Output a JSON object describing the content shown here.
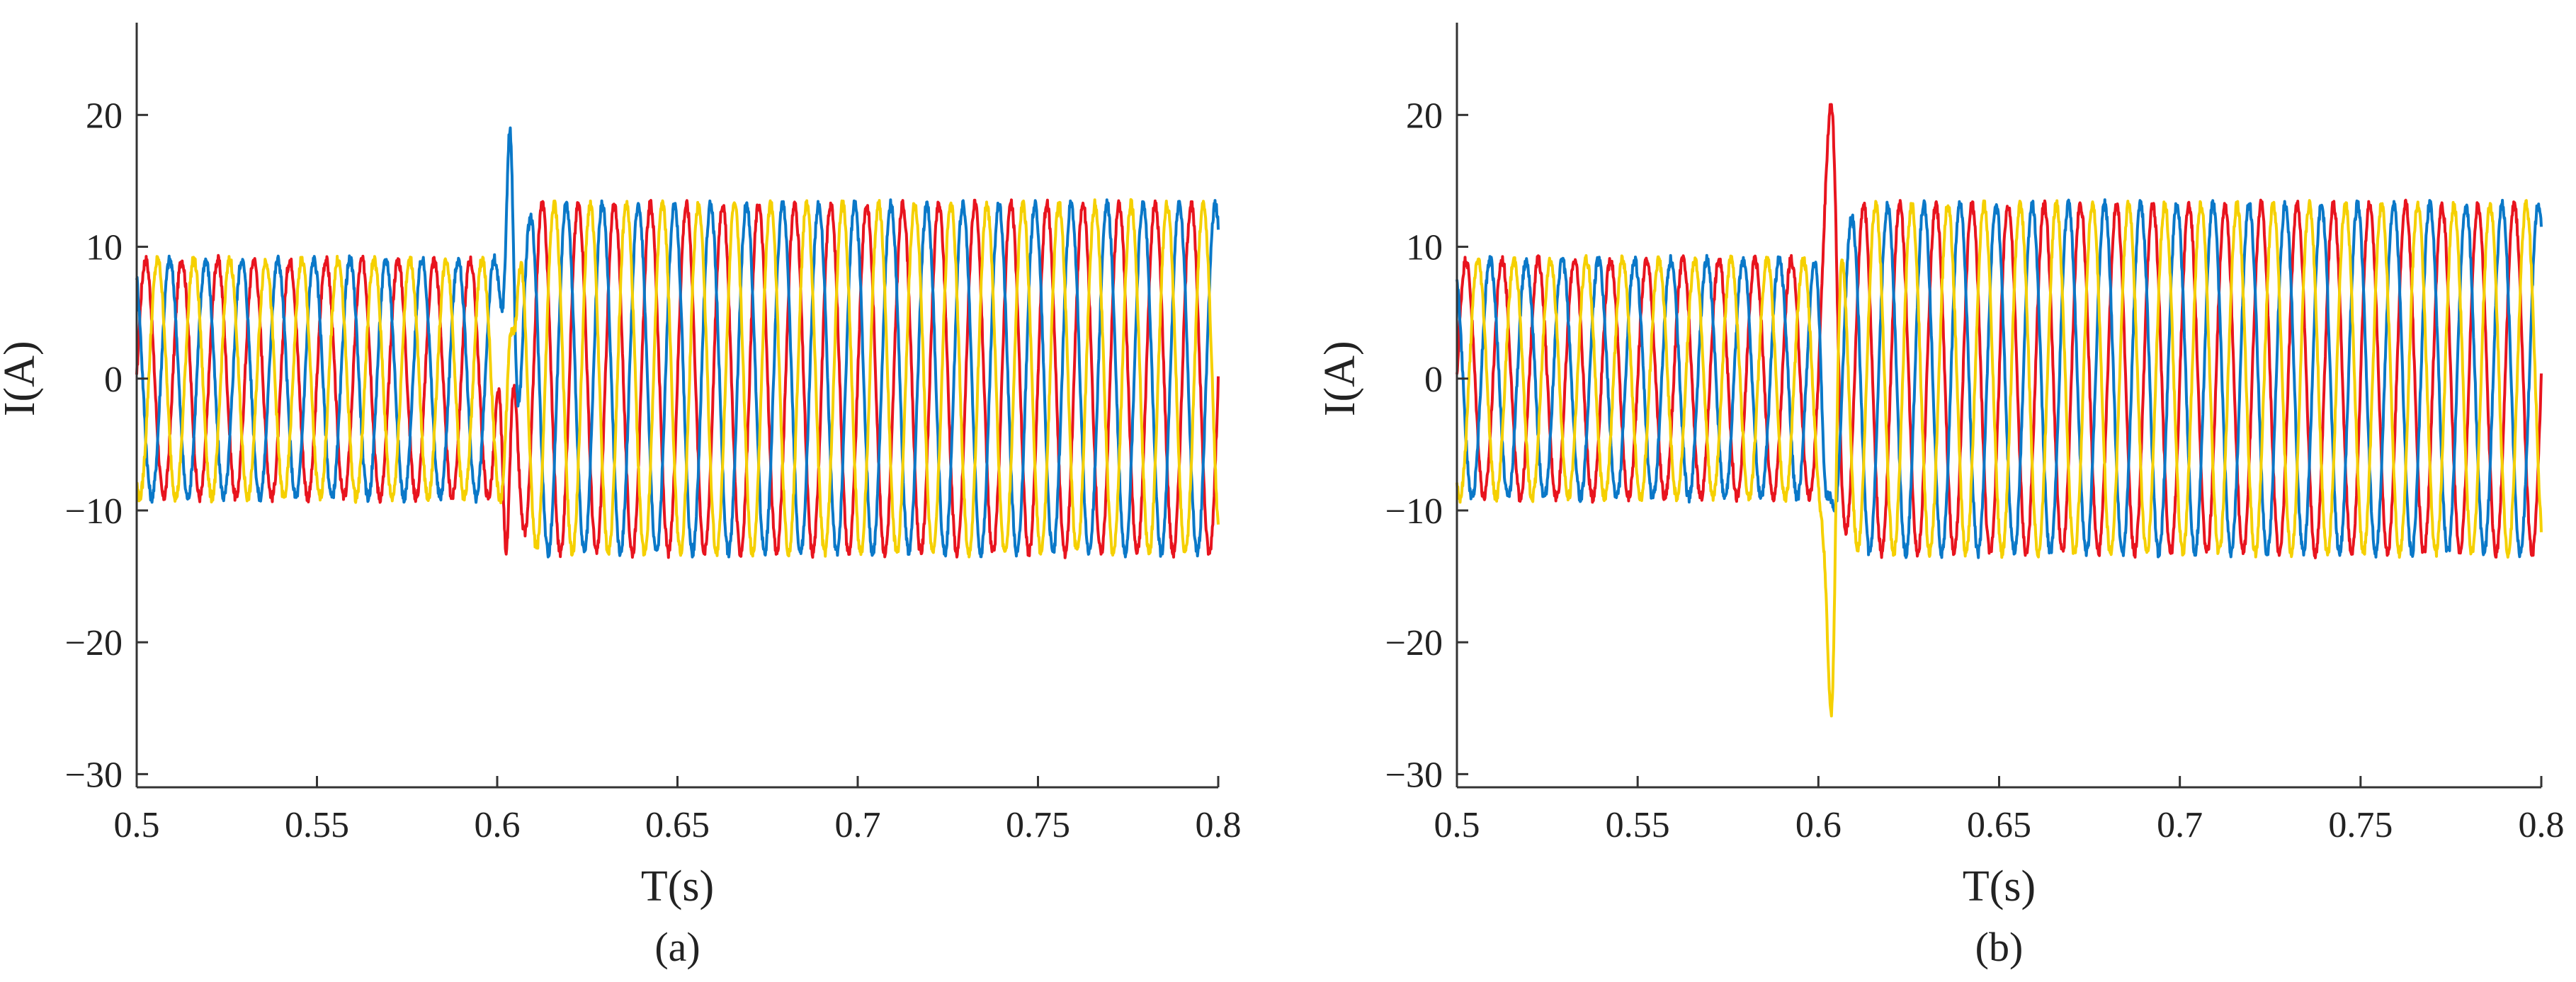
{
  "chart_data": [
    {
      "type": "line",
      "panel_label": "(a)",
      "xlabel": "T(s)",
      "ylabel": "I(A)",
      "xlim": [
        0.5,
        0.8
      ],
      "ylim": [
        -31,
        27
      ],
      "xticks": [
        0.5,
        0.55,
        0.6,
        0.65,
        0.7,
        0.75,
        0.8
      ],
      "xtick_labels": [
        "0.5",
        "0.55",
        "0.6",
        "0.65",
        "0.7",
        "0.75",
        "0.8"
      ],
      "yticks": [
        20,
        10,
        0,
        -10,
        -20,
        -30
      ],
      "ytick_labels": [
        "20",
        "10",
        "0",
        "−10",
        "−20",
        "−30"
      ],
      "grid": false,
      "frequency_hz": 100,
      "fault_time_s": 0.6,
      "series": [
        {
          "color": "#e8141e",
          "phase_deg": 0,
          "amplitude_before": 9,
          "amplitude_after": 13.2,
          "transient": {
            "t": 0.6025,
            "value": -13
          }
        },
        {
          "color": "#0a78c8",
          "phase_deg": 120,
          "amplitude_before": 9,
          "amplitude_after": 13.2,
          "transient": {
            "t": 0.6035,
            "value": 18.8
          }
        },
        {
          "color": "#f5d000",
          "phase_deg": -120,
          "amplitude_before": 9,
          "amplitude_after": 13.2,
          "transient": {
            "t": 0.6045,
            "value": 3.5
          }
        }
      ]
    },
    {
      "type": "line",
      "panel_label": "(b)",
      "xlabel": "T(s)",
      "ylabel": "I(A)",
      "xlim": [
        0.5,
        0.8
      ],
      "ylim": [
        -31,
        27
      ],
      "xticks": [
        0.5,
        0.55,
        0.6,
        0.65,
        0.7,
        0.75,
        0.8
      ],
      "xtick_labels": [
        "0.5",
        "0.55",
        "0.6",
        "0.65",
        "0.7",
        "0.75",
        "0.8"
      ],
      "yticks": [
        20,
        10,
        0,
        -10,
        -20,
        -30
      ],
      "ytick_labels": [
        "20",
        "10",
        "0",
        "−10",
        "−20",
        "−30"
      ],
      "grid": false,
      "frequency_hz": 100,
      "fault_time_s": 0.6,
      "series": [
        {
          "color": "#e8141e",
          "phase_deg": 0,
          "amplitude_before": 9,
          "amplitude_after": 13.2,
          "transient": {
            "t": 0.6035,
            "value": 20.8
          }
        },
        {
          "color": "#0a78c8",
          "phase_deg": 120,
          "amplitude_before": 9,
          "amplitude_after": 13.2,
          "transient": {
            "t": 0.6025,
            "value": -9
          }
        },
        {
          "color": "#f5d000",
          "phase_deg": -120,
          "amplitude_before": 9,
          "amplitude_after": 13.2,
          "transient": {
            "t": 0.6035,
            "value": -25.5
          }
        }
      ]
    }
  ]
}
